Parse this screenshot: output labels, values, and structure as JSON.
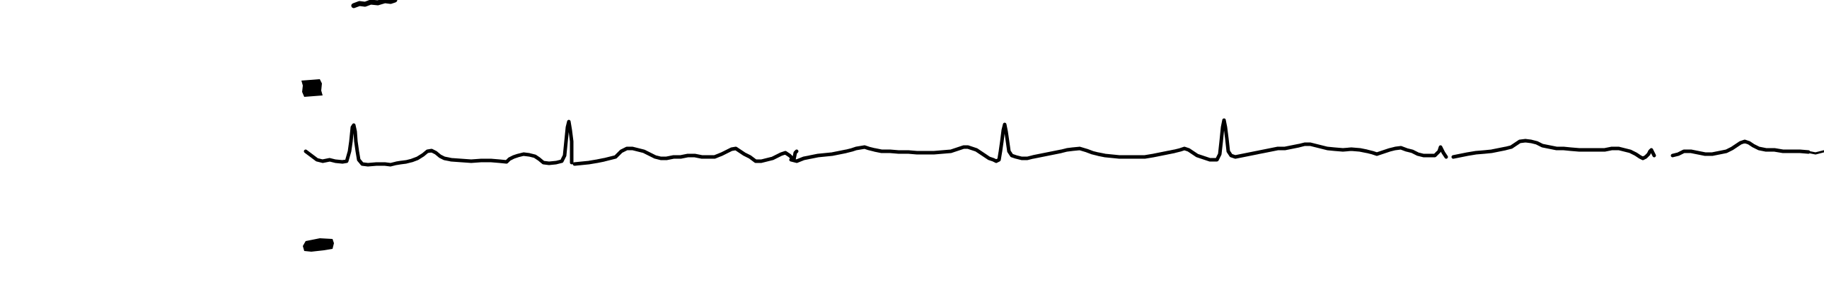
{
  "figure": {
    "kind": "ecg-rhythm-strip",
    "ink_color": "#000000",
    "background_color": "#ffffff",
    "grid": false
  },
  "trace": {
    "stroke_color": "#000000"
  },
  "top_fragment": {
    "stroke_color": "#000000"
  },
  "markers": {
    "color": "#000000",
    "count": 2
  }
}
